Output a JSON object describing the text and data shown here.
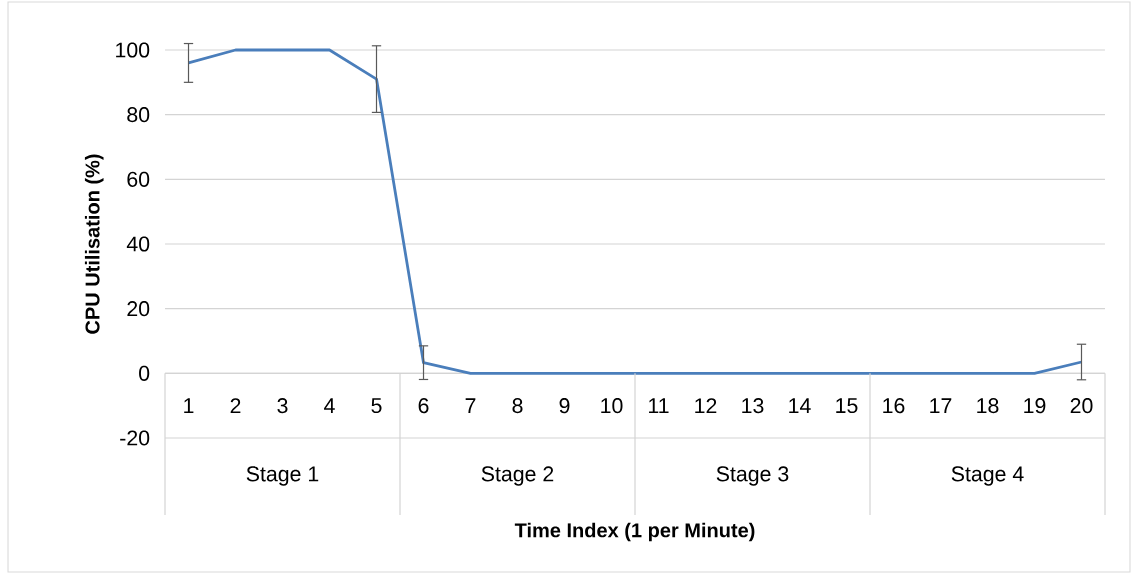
{
  "chart_data": {
    "type": "line",
    "xlabel": "Time Index (1 per Minute)",
    "ylabel": "CPU Utilisation (%)",
    "categories": [
      "1",
      "2",
      "3",
      "4",
      "5",
      "6",
      "7",
      "8",
      "9",
      "10",
      "11",
      "12",
      "13",
      "14",
      "15",
      "16",
      "17",
      "18",
      "19",
      "20"
    ],
    "series": [
      {
        "color": "#4a7ebb",
        "values": [
          96,
          100,
          100,
          100,
          91,
          3.3,
          0,
          0,
          0,
          0,
          0,
          0,
          0,
          0,
          0,
          0,
          0,
          0,
          0,
          3.5
        ],
        "errors": [
          6,
          null,
          null,
          null,
          10.3,
          5.2,
          null,
          null,
          null,
          null,
          null,
          null,
          null,
          null,
          null,
          null,
          null,
          null,
          null,
          5.5
        ]
      }
    ],
    "ylim": [
      -20,
      100
    ],
    "yticks": [
      -20,
      0,
      20,
      40,
      60,
      80,
      100
    ],
    "grid": "y",
    "marker": "none",
    "line_style": "solid",
    "annotations": [
      "Stage 1",
      "Stage 2",
      "Stage 3",
      "Stage 4"
    ]
  }
}
